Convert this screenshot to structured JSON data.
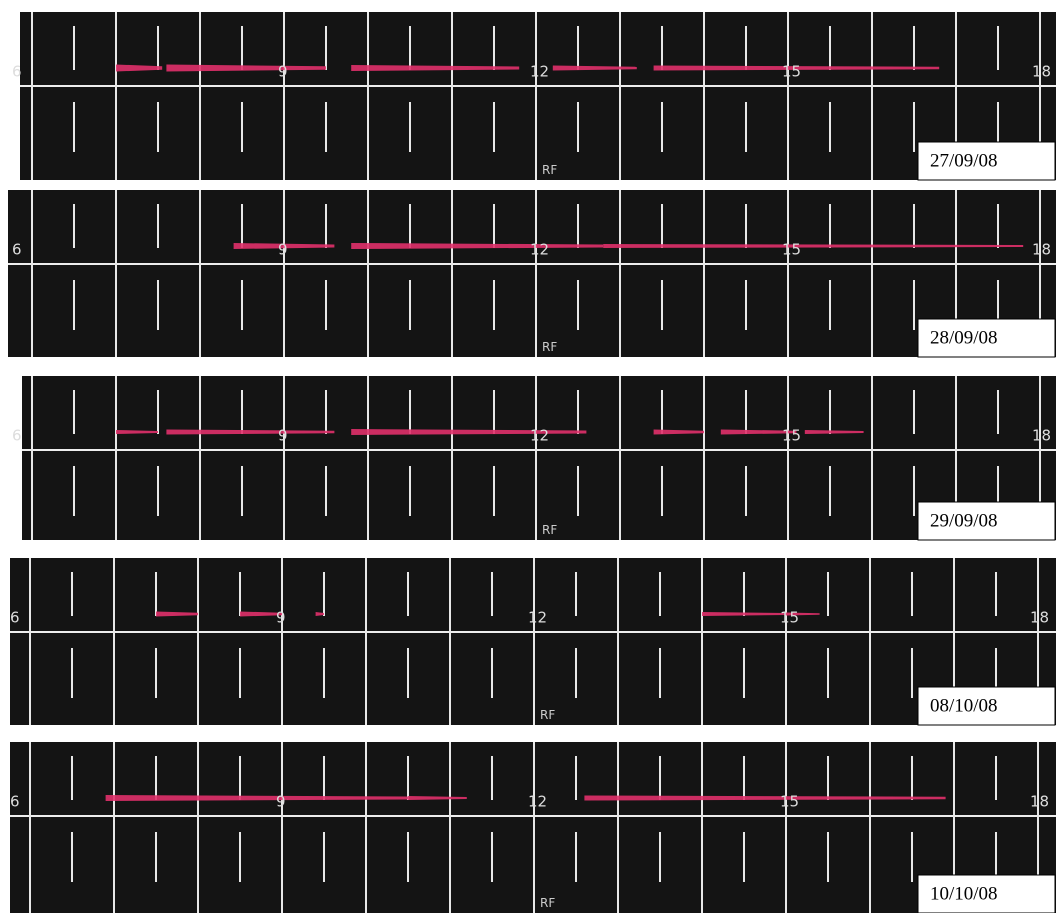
{
  "strips": [
    {
      "hours": [
        "6",
        "9",
        "12",
        "15",
        "18"
      ],
      "mark": "RF",
      "date": "27/09/08"
    },
    {
      "hours": [
        "6",
        "9",
        "12",
        "15",
        "18"
      ],
      "mark": "RF",
      "date": "28/09/08"
    },
    {
      "hours": [
        "6",
        "9",
        "12",
        "15",
        "18"
      ],
      "mark": "RF",
      "date": "29/09/08"
    },
    {
      "hours": [
        "6",
        "9",
        "12",
        "15",
        "18"
      ],
      "mark": "RF",
      "date": "08/10/08"
    },
    {
      "hours": [
        "6",
        "9",
        "12",
        "15",
        "18"
      ],
      "mark": "RF",
      "date": "10/10/08"
    }
  ]
}
